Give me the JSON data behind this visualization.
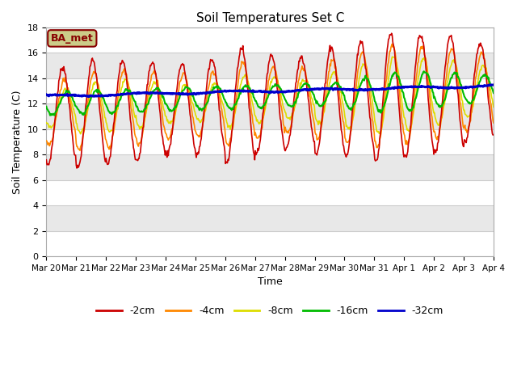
{
  "title": "Soil Temperatures Set C",
  "xlabel": "Time",
  "ylabel": "Soil Temperature (C)",
  "annotation": "BA_met",
  "ylim": [
    0,
    18
  ],
  "yticks": [
    0,
    2,
    4,
    6,
    8,
    10,
    12,
    14,
    16,
    18
  ],
  "x_labels": [
    "Mar 20",
    "Mar 21",
    "Mar 22",
    "Mar 23",
    "Mar 24",
    "Mar 25",
    "Mar 26",
    "Mar 27",
    "Mar 28",
    "Mar 29",
    "Mar 30",
    "Mar 31",
    "Apr 1",
    "Apr 2",
    "Apr 3",
    "Apr 4"
  ],
  "colors": {
    "-2cm": "#cc0000",
    "-4cm": "#ff8800",
    "-8cm": "#dddd00",
    "-16cm": "#00bb00",
    "-32cm": "#0000cc"
  },
  "band_colors": [
    "#ffffff",
    "#e8e8e8"
  ],
  "annotation_bg": "#cccc88",
  "annotation_border": "#880000",
  "annotation_text_color": "#880000",
  "title_fontsize": 11,
  "axis_label_fontsize": 9,
  "tick_fontsize": 8,
  "legend_fontsize": 9
}
